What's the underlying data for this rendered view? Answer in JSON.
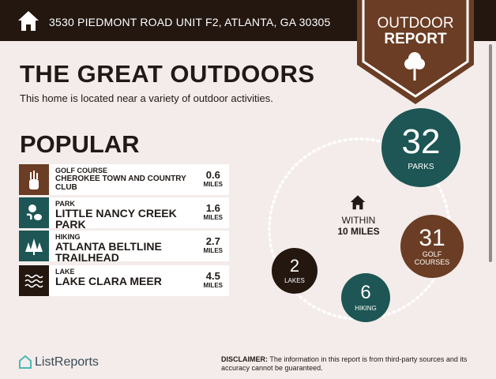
{
  "header": {
    "address": "3530 PIEDMONT ROAD UNIT F2, ATLANTA, GA 30305",
    "badge_line1": "OUTDOOR",
    "badge_line2": "REPORT"
  },
  "main": {
    "title": "THE GREAT OUTDOORS",
    "subtitle": "This home is located near a variety of outdoor activities.",
    "popular_heading": "POPULAR"
  },
  "popular": [
    {
      "category": "GOLF COURSE",
      "name": "CHEROKEE TOWN AND COUNTRY CLUB",
      "distance": "0.6",
      "unit": "MILES",
      "icon": "golf-bag-icon",
      "color": "#6b3d24"
    },
    {
      "category": "PARK",
      "name": "LITTLE NANCY CREEK PARK",
      "distance": "1.6",
      "unit": "MILES",
      "icon": "park-icon",
      "color": "#1d5654"
    },
    {
      "category": "HIKING",
      "name": "ATLANTA BELTLINE TRAILHEAD",
      "distance": "2.7",
      "unit": "MILES",
      "icon": "trees-icon",
      "color": "#1d5654"
    },
    {
      "category": "LAKE",
      "name": "LAKE CLARA MEER",
      "distance": "4.5",
      "unit": "MILES",
      "icon": "waves-icon",
      "color": "#231710"
    }
  ],
  "summary": {
    "within_line1": "WITHIN",
    "within_line2": "10 MILES",
    "parks": {
      "count": "32",
      "label": "PARKS"
    },
    "golf": {
      "count": "31",
      "label1": "GOLF",
      "label2": "COURSES"
    },
    "hiking": {
      "count": "6",
      "label": "HIKING"
    },
    "lakes": {
      "count": "2",
      "label": "LAKES"
    }
  },
  "footer": {
    "logo": "ListReports",
    "disclaimer_label": "DISCLAIMER:",
    "disclaimer_text": " The information in this report is from third-party sources and its accuracy cannot be guaranteed."
  }
}
